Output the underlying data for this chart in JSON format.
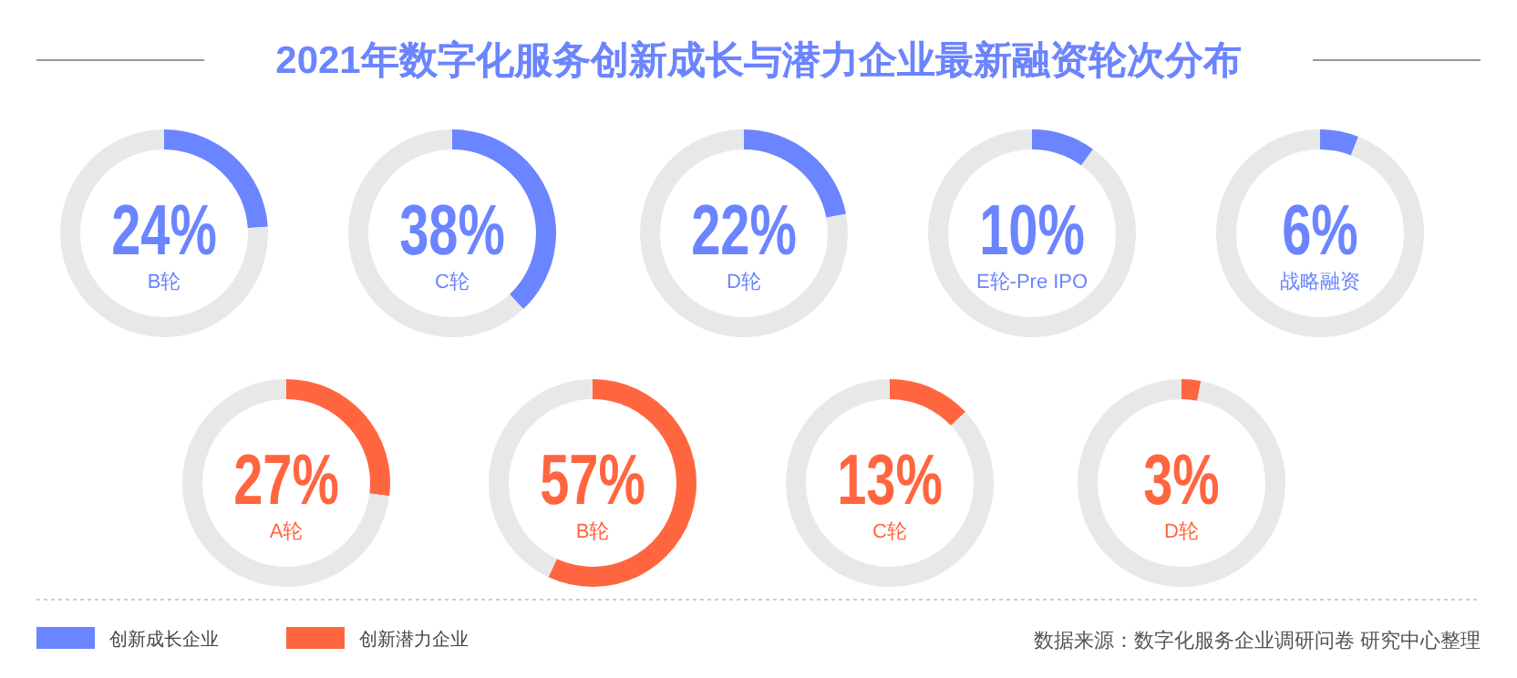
{
  "chart_data": [
    {
      "type": "donut",
      "categories": [
        "B轮",
        null
      ],
      "values": [
        24,
        76
      ],
      "colors": [
        "#6b84ff",
        "#e8e8e8"
      ],
      "value_labels": [
        "24%",
        null
      ]
    },
    {
      "type": "donut",
      "categories": [
        "C轮",
        null
      ],
      "values": [
        38,
        62
      ],
      "colors": [
        "#6b84ff",
        "#e8e8e8"
      ],
      "value_labels": [
        "38%",
        null
      ]
    },
    {
      "type": "donut",
      "categories": [
        "D轮",
        null
      ],
      "values": [
        22,
        78
      ],
      "colors": [
        "#6b84ff",
        "#e8e8e8"
      ],
      "value_labels": [
        "22%",
        null
      ]
    },
    {
      "type": "donut",
      "categories": [
        "E轮-Pre IPO",
        null
      ],
      "values": [
        10,
        90
      ],
      "colors": [
        "#6b84ff",
        "#e8e8e8"
      ],
      "value_labels": [
        "10%",
        null
      ]
    },
    {
      "type": "donut",
      "categories": [
        "战略融资",
        null
      ],
      "values": [
        6,
        94
      ],
      "colors": [
        "#6b84ff",
        "#e8e8e8"
      ],
      "value_labels": [
        "6%",
        null
      ]
    },
    {
      "type": "donut",
      "categories": [
        "A轮",
        null
      ],
      "values": [
        27,
        73
      ],
      "colors": [
        "#ff6640",
        "#e8e8e8"
      ],
      "value_labels": [
        "27%",
        null
      ]
    },
    {
      "type": "donut",
      "categories": [
        "B轮",
        null
      ],
      "values": [
        57,
        43
      ],
      "colors": [
        "#ff6640",
        "#e8e8e8"
      ],
      "value_labels": [
        "57%",
        null
      ]
    },
    {
      "type": "donut",
      "categories": [
        "C轮",
        null
      ],
      "values": [
        13,
        87
      ],
      "colors": [
        "#ff6640",
        "#e8e8e8"
      ],
      "value_labels": [
        "13%",
        null
      ]
    },
    {
      "type": "donut",
      "categories": [
        "D轮",
        null
      ],
      "values": [
        3,
        97
      ],
      "colors": [
        "#ff6640",
        "#e8e8e8"
      ],
      "value_labels": [
        "3%",
        null
      ]
    },
    {
      "type": "other",
      "title": "2021年数字化服务创新成长与潜力企业最新融资轮次分布",
      "series": [
        {
          "name": "创新成长企业",
          "color": "#6b84ff"
        },
        {
          "name": "创新潜力企业",
          "color": "#ff6640"
        }
      ],
      "legend": "bottom left",
      "annotations": [
        "数据来源：数字化服务企业调研问卷 研究中心整理"
      ]
    }
  ]
}
